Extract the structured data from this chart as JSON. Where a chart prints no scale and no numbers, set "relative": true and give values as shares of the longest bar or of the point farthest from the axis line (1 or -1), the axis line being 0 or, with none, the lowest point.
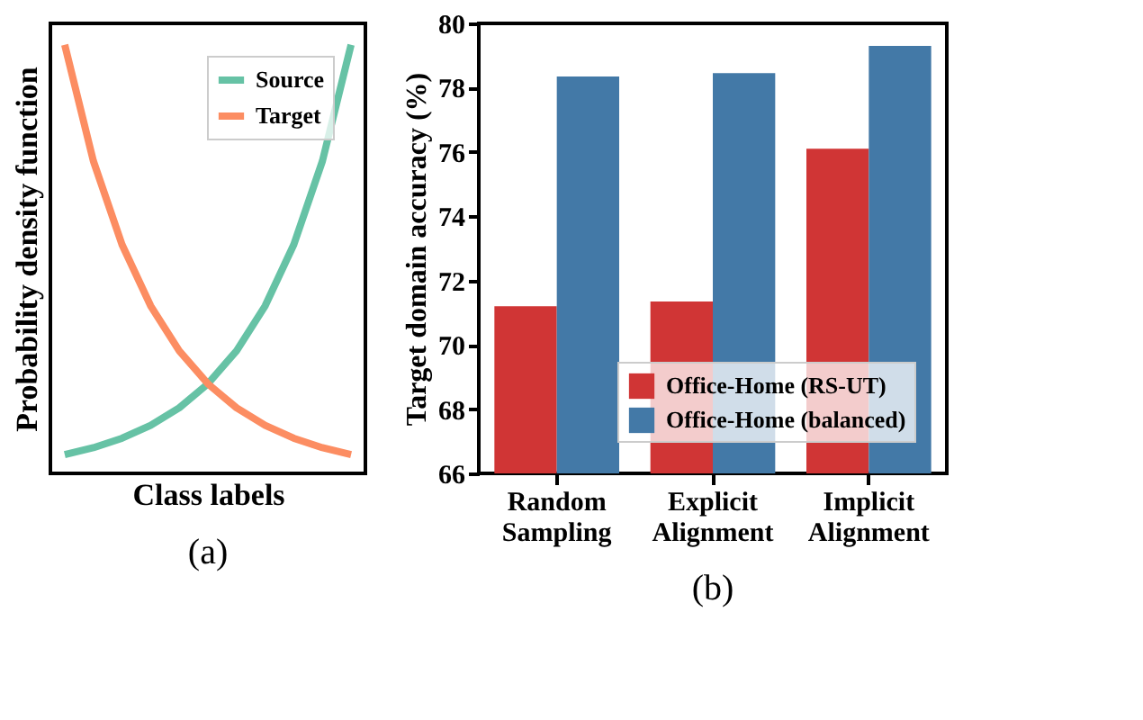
{
  "chart_data": [
    {
      "type": "line",
      "relative": true,
      "xlabel": "Class labels",
      "ylabel": "Probability density function",
      "annotations": [
        "(a)"
      ],
      "legend": "top right",
      "tick_labels": false,
      "grid": false,
      "marker": "none",
      "line_style": "solid",
      "categories": [
        null,
        null,
        null,
        null,
        null,
        null,
        null,
        null,
        null,
        null,
        null
      ],
      "series": [
        {
          "name": "Source",
          "color": "#66c2a5",
          "values": [
            0.044,
            0.06,
            0.082,
            0.112,
            0.153,
            0.209,
            0.286,
            0.391,
            0.534,
            0.729,
            1.0
          ]
        },
        {
          "name": "Target",
          "color": "#fc8d62",
          "values": [
            1.0,
            0.729,
            0.534,
            0.391,
            0.286,
            0.209,
            0.153,
            0.112,
            0.082,
            0.06,
            0.044
          ]
        }
      ]
    },
    {
      "type": "bar",
      "ylabel": "Target domain accuracy (%)",
      "annotations": [
        "(b)"
      ],
      "legend": "bottom right",
      "grid": false,
      "categories": [
        "Random Sampling",
        "Explicit Alignment",
        "Implicit Alignment"
      ],
      "ylim": [
        66,
        80
      ],
      "yticks": [
        66,
        68,
        70,
        72,
        74,
        76,
        78,
        80
      ],
      "series": [
        {
          "name": "Office-Home (RS-UT)",
          "color": "#d03535",
          "values": [
            71.2,
            71.35,
            76.1
          ]
        },
        {
          "name": "Office-Home (balanced)",
          "color": "#4379a7",
          "values": [
            78.35,
            78.45,
            79.3
          ]
        }
      ]
    }
  ]
}
